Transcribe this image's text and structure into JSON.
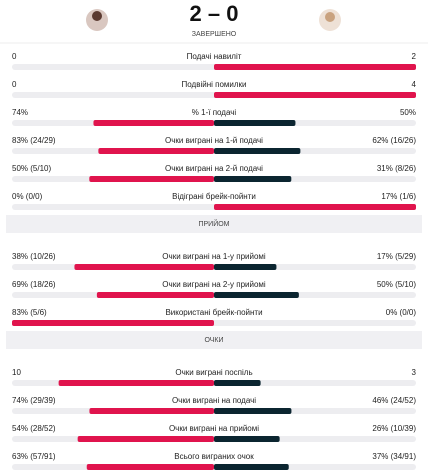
{
  "header": {
    "score": "2 – 0",
    "status": "ЗАВЕРШЕНО"
  },
  "groups": [
    {
      "rows": [
        {
          "label": "Подачі навиліт",
          "left": {
            "label": "0",
            "value": 0
          },
          "right": {
            "label": "2",
            "value": 2
          }
        },
        {
          "label": "Подвійні помилки",
          "left": {
            "label": "0",
            "value": 0
          },
          "right": {
            "label": "4",
            "value": 4
          }
        },
        {
          "label": "% 1-ї подачі",
          "left": {
            "label": "74%",
            "value": 74
          },
          "right": {
            "label": "50%",
            "value": 50
          }
        },
        {
          "label": "Очки виграні на 1-й подачі",
          "left": {
            "label": "83% (24/29)",
            "value": 83
          },
          "right": {
            "label": "62% (16/26)",
            "value": 62
          }
        },
        {
          "label": "Очки виграні на 2-й подачі",
          "left": {
            "label": "50% (5/10)",
            "value": 50
          },
          "right": {
            "label": "31% (8/26)",
            "value": 31
          }
        },
        {
          "label": "Відіграні брейк-пойнти",
          "left": {
            "label": "0% (0/0)",
            "value": 0
          },
          "right": {
            "label": "17% (1/6)",
            "value": 17
          }
        }
      ]
    },
    {
      "title": "ПРИЙОМ",
      "rows": [
        {
          "label": "Очки виграні на 1-у прийомі",
          "left": {
            "label": "38% (10/26)",
            "value": 38
          },
          "right": {
            "label": "17% (5/29)",
            "value": 17
          }
        },
        {
          "label": "Очки виграні на 2-у прийомі",
          "left": {
            "label": "69% (18/26)",
            "value": 69
          },
          "right": {
            "label": "50% (5/10)",
            "value": 50
          }
        },
        {
          "label": "Використані брейк-пойнти",
          "left": {
            "label": "83% (5/6)",
            "value": 83
          },
          "right": {
            "label": "0% (0/0)",
            "value": 0
          }
        }
      ]
    },
    {
      "title": "ОЧКИ",
      "rows": [
        {
          "label": "Очки виграні поспіль",
          "left": {
            "label": "10",
            "value": 10
          },
          "right": {
            "label": "3",
            "value": 3
          }
        },
        {
          "label": "Очки виграні на подачі",
          "left": {
            "label": "74% (29/39)",
            "value": 74
          },
          "right": {
            "label": "46% (24/52)",
            "value": 46
          }
        },
        {
          "label": "Очки виграні на прийомі",
          "left": {
            "label": "54% (28/52)",
            "value": 54
          },
          "right": {
            "label": "26% (10/39)",
            "value": 26
          }
        },
        {
          "label": "Всього виграних очок",
          "left": {
            "label": "63% (57/91)",
            "value": 63
          },
          "right": {
            "label": "37% (34/91)",
            "value": 37
          }
        }
      ]
    }
  ]
}
